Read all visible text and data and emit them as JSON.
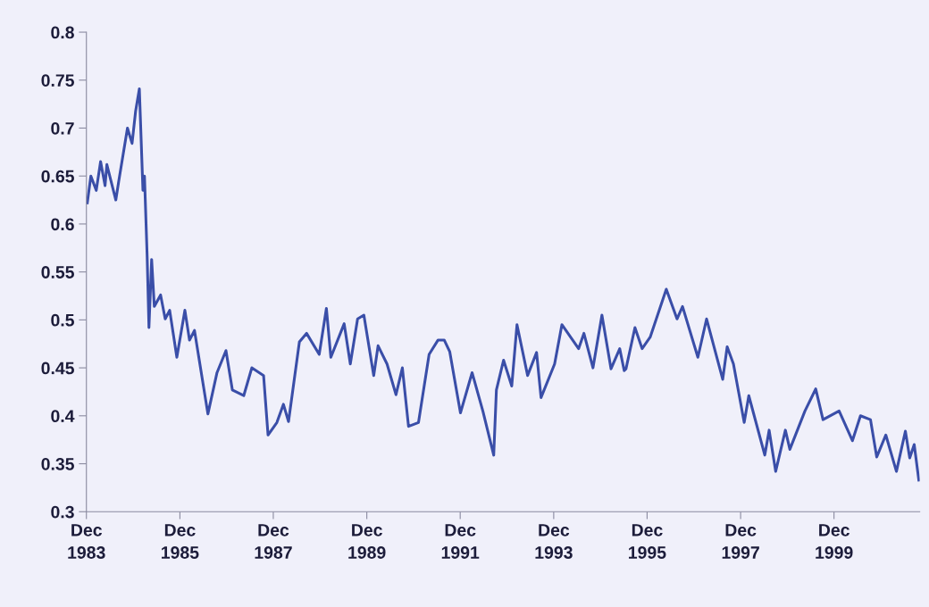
{
  "chart_data": {
    "type": "line",
    "xlim": [
      "1983-12-01",
      "2001-10-01"
    ],
    "ylim": [
      0.3,
      0.8
    ],
    "yticks": [
      0.3,
      0.35,
      0.4,
      0.45,
      0.5,
      0.55,
      0.6,
      0.65,
      0.7,
      0.75,
      0.8
    ],
    "xticks": [
      {
        "value": "1983-12-01",
        "label": "Dec\n1983"
      },
      {
        "value": "1985-12-01",
        "label": "Dec\n1985"
      },
      {
        "value": "1987-12-01",
        "label": "Dec\n1987"
      },
      {
        "value": "1989-12-01",
        "label": "Dec\n1989"
      },
      {
        "value": "1991-12-01",
        "label": "Dec\n1991"
      },
      {
        "value": "1993-12-01",
        "label": "Dec\n1993"
      },
      {
        "value": "1995-12-01",
        "label": "Dec\n1995"
      },
      {
        "value": "1997-12-01",
        "label": "Dec\n1997"
      },
      {
        "value": "1999-12-01",
        "label": "Dec\n1999"
      }
    ],
    "grid": false,
    "marker": "none",
    "line_style": "solid",
    "series": [
      {
        "color": "#3a4ea8",
        "x": [
          "1983-12-08",
          "1984-01-05",
          "1984-02-16",
          "1984-03-21",
          "1984-04-25",
          "1984-05-09",
          "1984-07-18",
          "1984-08-09",
          "1984-10-17",
          "1984-11-22",
          "1984-12-20",
          "1985-01-18",
          "1985-02-15",
          "1985-02-27",
          "1985-03-20",
          "1985-04-03",
          "1985-04-24",
          "1985-05-15",
          "1985-07-03",
          "1985-08-08",
          "1985-09-12",
          "1985-11-07",
          "1986-01-09",
          "1986-02-14",
          "1986-03-25",
          "1986-07-08",
          "1986-09-17",
          "1986-11-26",
          "1987-01-15",
          "1987-04-14",
          "1987-06-16",
          "1987-09-16",
          "1987-10-21",
          "1987-12-29",
          "1988-02-18",
          "1988-03-29",
          "1988-06-22",
          "1988-08-17",
          "1988-11-24",
          "1989-01-19",
          "1989-02-23",
          "1989-06-07",
          "1989-07-25",
          "1989-09-20",
          "1989-11-08",
          "1990-01-24",
          "1990-02-27",
          "1990-05-08",
          "1990-07-17",
          "1990-09-05",
          "1990-10-23",
          "1991-01-09",
          "1991-04-02",
          "1991-06-11",
          "1991-07-29",
          "1991-09-10",
          "1991-12-03",
          "1992-03-03",
          "1992-05-26",
          "1992-08-19",
          "1992-09-09",
          "1992-11-04",
          "1993-01-07",
          "1993-02-17",
          "1993-05-11",
          "1993-07-20",
          "1993-08-24",
          "1993-12-08",
          "1994-02-03",
          "1994-06-14",
          "1994-07-25",
          "1994-10-04",
          "1994-12-13",
          "1995-02-22",
          "1995-05-01",
          "1995-06-05",
          "1995-06-19",
          "1995-08-28",
          "1995-10-23",
          "1995-12-25",
          "1996-04-29",
          "1996-07-22",
          "1996-09-03",
          "1997-01-01",
          "1997-03-10",
          "1997-07-14",
          "1997-08-18",
          "1997-10-06",
          "1997-12-29",
          "1998-02-03",
          "1998-06-08",
          "1998-07-12",
          "1998-09-01",
          "1998-11-16",
          "1998-12-21",
          "1999-04-18",
          "1999-07-11",
          "1999-09-06",
          "2000-01-10",
          "2000-04-23",
          "2000-06-25",
          "2000-09-11",
          "2000-10-30",
          "2001-01-09",
          "2001-04-02",
          "2001-06-11",
          "2001-07-15",
          "2001-08-19",
          "2001-09-24"
        ],
        "values": [
          0.622,
          0.65,
          0.635,
          0.665,
          0.64,
          0.662,
          0.625,
          0.644,
          0.7,
          0.684,
          0.718,
          0.741,
          0.635,
          0.65,
          0.566,
          0.492,
          0.563,
          0.514,
          0.526,
          0.501,
          0.51,
          0.461,
          0.51,
          0.479,
          0.489,
          0.402,
          0.445,
          0.468,
          0.427,
          0.421,
          0.45,
          0.442,
          0.38,
          0.393,
          0.412,
          0.394,
          0.477,
          0.486,
          0.464,
          0.512,
          0.461,
          0.496,
          0.454,
          0.501,
          0.505,
          0.442,
          0.473,
          0.454,
          0.422,
          0.45,
          0.389,
          0.393,
          0.464,
          0.479,
          0.479,
          0.467,
          0.403,
          0.445,
          0.405,
          0.359,
          0.427,
          0.458,
          0.431,
          0.495,
          0.442,
          0.466,
          0.419,
          0.454,
          0.495,
          0.47,
          0.486,
          0.45,
          0.505,
          0.449,
          0.47,
          0.447,
          0.449,
          0.492,
          0.47,
          0.482,
          0.532,
          0.501,
          0.514,
          0.461,
          0.501,
          0.438,
          0.472,
          0.454,
          0.393,
          0.421,
          0.359,
          0.385,
          0.342,
          0.385,
          0.365,
          0.405,
          0.428,
          0.396,
          0.405,
          0.374,
          0.4,
          0.396,
          0.357,
          0.38,
          0.342,
          0.384,
          0.356,
          0.37,
          0.333
        ]
      }
    ]
  }
}
